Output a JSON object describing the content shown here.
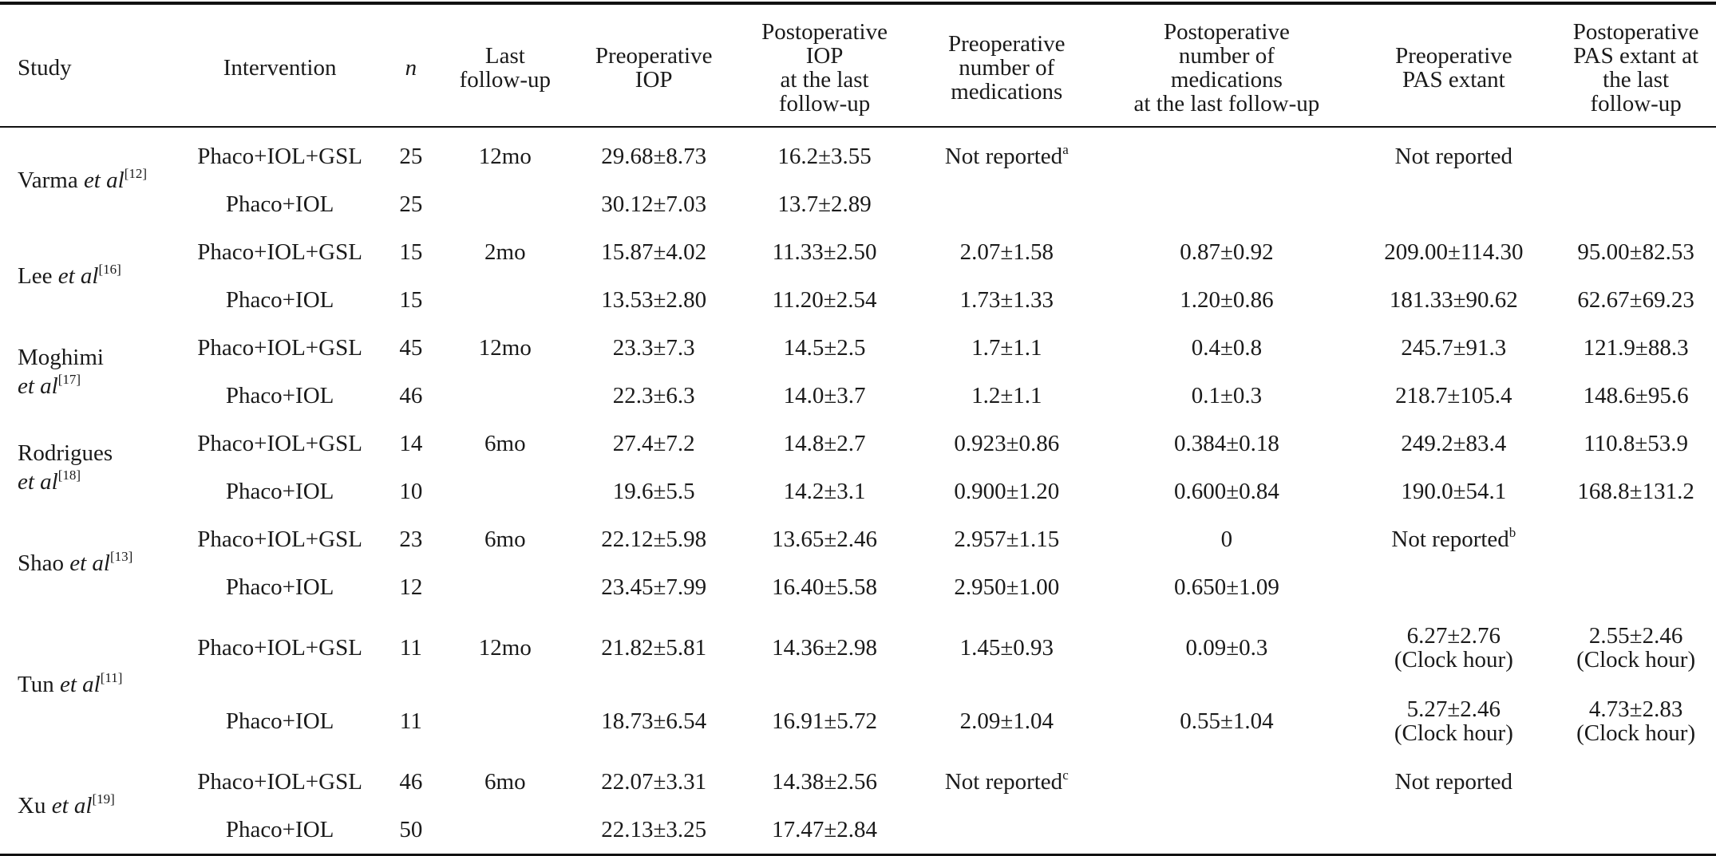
{
  "headers": {
    "study": "Study",
    "intervention": "Intervention",
    "n": "n",
    "last_followup": [
      "Last",
      "follow-up"
    ],
    "pre_iop": [
      "Preoperative",
      "IOP"
    ],
    "post_iop": [
      "Postoperative",
      "IOP",
      "at the last",
      "follow-up"
    ],
    "pre_meds": [
      "Preoperative",
      "number of",
      "medications"
    ],
    "post_meds": [
      "Postoperative",
      "number of",
      "medications",
      "at the last follow-up"
    ],
    "pre_pas": [
      "Preoperative",
      "PAS extant"
    ],
    "post_pas": [
      "Postoperative",
      "PAS extant at",
      "the last",
      "follow-up"
    ]
  },
  "studies": [
    {
      "name": "Varma",
      "name2": "et al",
      "ref": "[12]",
      "rows": [
        {
          "intervention": "Phaco+IOL+GSL",
          "n": "25",
          "followup": "12mo",
          "pre_iop": "29.68±8.73",
          "post_iop": "16.2±3.55",
          "pre_meds": "Not reported",
          "pre_meds_sup": "a",
          "post_meds": "",
          "pre_pas": "Not reported",
          "pre_pas_sup": "",
          "post_pas": ""
        },
        {
          "intervention": "Phaco+IOL",
          "n": "25",
          "followup": "",
          "pre_iop": "30.12±7.03",
          "post_iop": "13.7±2.89",
          "pre_meds": "",
          "pre_meds_sup": "",
          "post_meds": "",
          "pre_pas": "",
          "pre_pas_sup": "",
          "post_pas": ""
        }
      ]
    },
    {
      "name": "Lee",
      "name2": "et al",
      "ref": "[16]",
      "rows": [
        {
          "intervention": "Phaco+IOL+GSL",
          "n": "15",
          "followup": "2mo",
          "pre_iop": "15.87±4.02",
          "post_iop": "11.33±2.50",
          "pre_meds": "2.07±1.58",
          "pre_meds_sup": "",
          "post_meds": "0.87±0.92",
          "pre_pas": "209.00±114.30",
          "pre_pas_sup": "",
          "post_pas": "95.00±82.53"
        },
        {
          "intervention": "Phaco+IOL",
          "n": "15",
          "followup": "",
          "pre_iop": "13.53±2.80",
          "post_iop": "11.20±2.54",
          "pre_meds": "1.73±1.33",
          "pre_meds_sup": "",
          "post_meds": "1.20±0.86",
          "pre_pas": "181.33±90.62",
          "pre_pas_sup": "",
          "post_pas": "62.67±69.23"
        }
      ]
    },
    {
      "name": "Moghimi",
      "name2": "et al",
      "ref": "[17]",
      "rows": [
        {
          "intervention": "Phaco+IOL+GSL",
          "n": "45",
          "followup": "12mo",
          "pre_iop": "23.3±7.3",
          "post_iop": "14.5±2.5",
          "pre_meds": "1.7±1.1",
          "pre_meds_sup": "",
          "post_meds": "0.4±0.8",
          "pre_pas": "245.7±91.3",
          "pre_pas_sup": "",
          "post_pas": "121.9±88.3"
        },
        {
          "intervention": "Phaco+IOL",
          "n": "46",
          "followup": "",
          "pre_iop": "22.3±6.3",
          "post_iop": "14.0±3.7",
          "pre_meds": "1.2±1.1",
          "pre_meds_sup": "",
          "post_meds": "0.1±0.3",
          "pre_pas": "218.7±105.4",
          "pre_pas_sup": "",
          "post_pas": "148.6±95.6"
        }
      ]
    },
    {
      "name": "Rodrigues",
      "name2": "et al",
      "ref": "[18]",
      "rows": [
        {
          "intervention": "Phaco+IOL+GSL",
          "n": "14",
          "followup": "6mo",
          "pre_iop": "27.4±7.2",
          "post_iop": "14.8±2.7",
          "pre_meds": "0.923±0.86",
          "pre_meds_sup": "",
          "post_meds": "0.384±0.18",
          "pre_pas": "249.2±83.4",
          "pre_pas_sup": "",
          "post_pas": "110.8±53.9"
        },
        {
          "intervention": "Phaco+IOL",
          "n": "10",
          "followup": "",
          "pre_iop": "19.6±5.5",
          "post_iop": "14.2±3.1",
          "pre_meds": "0.900±1.20",
          "pre_meds_sup": "",
          "post_meds": "0.600±0.84",
          "pre_pas": "190.0±54.1",
          "pre_pas_sup": "",
          "post_pas": "168.8±131.2"
        }
      ]
    },
    {
      "name": "Shao",
      "name2": "et al",
      "ref": "[13]",
      "rows": [
        {
          "intervention": "Phaco+IOL+GSL",
          "n": "23",
          "followup": "6mo",
          "pre_iop": "22.12±5.98",
          "post_iop": "13.65±2.46",
          "pre_meds": "2.957±1.15",
          "pre_meds_sup": "",
          "post_meds": "0",
          "pre_pas": "Not reported",
          "pre_pas_sup": "b",
          "post_pas": ""
        },
        {
          "intervention": "Phaco+IOL",
          "n": "12",
          "followup": "",
          "pre_iop": "23.45±7.99",
          "post_iop": "16.40±5.58",
          "pre_meds": "2.950±1.00",
          "pre_meds_sup": "",
          "post_meds": "0.650±1.09",
          "pre_pas": "",
          "pre_pas_sup": "",
          "post_pas": ""
        }
      ]
    },
    {
      "name": "Tun",
      "name2": "et al",
      "ref": "[11]",
      "rows": [
        {
          "intervention": "Phaco+IOL+GSL",
          "n": "11",
          "followup": "12mo",
          "pre_iop": "21.82±5.81",
          "post_iop": "14.36±2.98",
          "pre_meds": "1.45±0.93",
          "pre_meds_sup": "",
          "post_meds": "0.09±0.3",
          "pre_pas": "6.27±2.76",
          "pre_pas_unit": "(Clock hour)",
          "pre_pas_sup": "",
          "post_pas": "2.55±2.46",
          "post_pas_unit": "(Clock hour)"
        },
        {
          "intervention": "Phaco+IOL",
          "n": "11",
          "followup": "",
          "pre_iop": "18.73±6.54",
          "post_iop": "16.91±5.72",
          "pre_meds": "2.09±1.04",
          "pre_meds_sup": "",
          "post_meds": "0.55±1.04",
          "pre_pas": "5.27±2.46",
          "pre_pas_unit": "(Clock hour)",
          "pre_pas_sup": "",
          "post_pas": "4.73±2.83",
          "post_pas_unit": "(Clock hour)"
        }
      ]
    },
    {
      "name": "Xu",
      "name2": "et al",
      "ref": "[19]",
      "rows": [
        {
          "intervention": "Phaco+IOL+GSL",
          "n": "46",
          "followup": "6mo",
          "pre_iop": "22.07±3.31",
          "post_iop": "14.38±2.56",
          "pre_meds": "Not reported",
          "pre_meds_sup": "c",
          "post_meds": "",
          "pre_pas": "Not reported",
          "pre_pas_sup": "",
          "post_pas": ""
        },
        {
          "intervention": "Phaco+IOL",
          "n": "50",
          "followup": "",
          "pre_iop": "22.13±3.25",
          "post_iop": "17.47±2.84",
          "pre_meds": "",
          "pre_meds_sup": "",
          "post_meds": "",
          "pre_pas": "",
          "pre_pas_sup": "",
          "post_pas": ""
        }
      ]
    }
  ]
}
